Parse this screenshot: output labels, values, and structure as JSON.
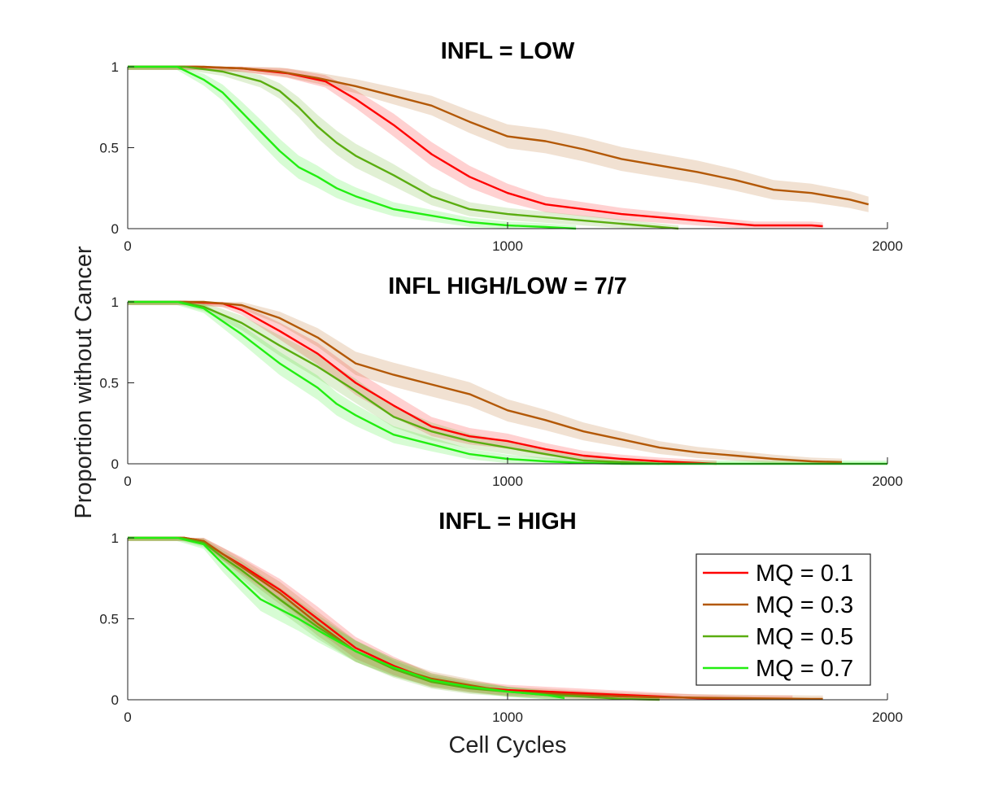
{
  "chart_data": {
    "type": "line",
    "xlabel": "Cell Cycles",
    "ylabel": "Proportion without Cancer",
    "xlim": [
      0,
      2000
    ],
    "ylim": [
      0,
      1
    ],
    "x_ticks": [
      "0",
      "1000",
      "2000"
    ],
    "y_ticks": [
      "0",
      "0.5",
      "1"
    ],
    "grid": false,
    "legend": {
      "placement": "bottom-right of third panel",
      "entries": [
        "MQ = 0.1",
        "MQ = 0.3",
        "MQ = 0.5",
        "MQ = 0.7"
      ]
    },
    "colors": {
      "MQ = 0.1": "#ff0000",
      "MQ = 0.3": "#b35806",
      "MQ = 0.5": "#5aad10",
      "MQ = 0.7": "#22ee11"
    },
    "panels": [
      {
        "title": "INFL = LOW",
        "series": [
          {
            "name": "MQ = 0.1",
            "points": [
              [
                0,
                1
              ],
              [
                180,
                1
              ],
              [
                300,
                0.99
              ],
              [
                420,
                0.96
              ],
              [
                520,
                0.91
              ],
              [
                600,
                0.8
              ],
              [
                700,
                0.64
              ],
              [
                800,
                0.46
              ],
              [
                900,
                0.32
              ],
              [
                1000,
                0.22
              ],
              [
                1100,
                0.15
              ],
              [
                1200,
                0.12
              ],
              [
                1300,
                0.09
              ],
              [
                1400,
                0.07
              ],
              [
                1500,
                0.05
              ],
              [
                1600,
                0.03
              ],
              [
                1650,
                0.02
              ],
              [
                1800,
                0.02
              ],
              [
                1830,
                0.015
              ]
            ]
          },
          {
            "name": "MQ = 0.3",
            "points": [
              [
                0,
                1
              ],
              [
                200,
                1
              ],
              [
                300,
                0.99
              ],
              [
                400,
                0.97
              ],
              [
                500,
                0.93
              ],
              [
                600,
                0.88
              ],
              [
                700,
                0.82
              ],
              [
                800,
                0.76
              ],
              [
                900,
                0.66
              ],
              [
                1000,
                0.57
              ],
              [
                1100,
                0.54
              ],
              [
                1200,
                0.49
              ],
              [
                1300,
                0.43
              ],
              [
                1400,
                0.39
              ],
              [
                1500,
                0.35
              ],
              [
                1600,
                0.3
              ],
              [
                1700,
                0.24
              ],
              [
                1800,
                0.22
              ],
              [
                1900,
                0.18
              ],
              [
                1950,
                0.15
              ]
            ]
          },
          {
            "name": "MQ = 0.5",
            "points": [
              [
                0,
                1
              ],
              [
                150,
                1
              ],
              [
                250,
                0.97
              ],
              [
                350,
                0.91
              ],
              [
                400,
                0.85
              ],
              [
                450,
                0.75
              ],
              [
                500,
                0.63
              ],
              [
                550,
                0.53
              ],
              [
                600,
                0.45
              ],
              [
                700,
                0.33
              ],
              [
                800,
                0.2
              ],
              [
                900,
                0.12
              ],
              [
                1000,
                0.09
              ],
              [
                1100,
                0.07
              ],
              [
                1200,
                0.05
              ],
              [
                1300,
                0.03
              ],
              [
                1400,
                0.01
              ],
              [
                1450,
                0
              ]
            ]
          },
          {
            "name": "MQ = 0.7",
            "points": [
              [
                0,
                1
              ],
              [
                130,
                1
              ],
              [
                200,
                0.92
              ],
              [
                250,
                0.84
              ],
              [
                300,
                0.72
              ],
              [
                350,
                0.6
              ],
              [
                400,
                0.48
              ],
              [
                450,
                0.38
              ],
              [
                500,
                0.32
              ],
              [
                550,
                0.25
              ],
              [
                600,
                0.2
              ],
              [
                700,
                0.12
              ],
              [
                800,
                0.08
              ],
              [
                900,
                0.04
              ],
              [
                1000,
                0.02
              ],
              [
                1100,
                0.01
              ],
              [
                1180,
                0
              ]
            ]
          }
        ]
      },
      {
        "title": "INFL HIGH/LOW = 7/7",
        "series": [
          {
            "name": "MQ = 0.1",
            "points": [
              [
                0,
                1
              ],
              [
                150,
                1
              ],
              [
                250,
                0.99
              ],
              [
                300,
                0.95
              ],
              [
                400,
                0.82
              ],
              [
                500,
                0.68
              ],
              [
                600,
                0.5
              ],
              [
                700,
                0.36
              ],
              [
                800,
                0.23
              ],
              [
                900,
                0.17
              ],
              [
                1000,
                0.14
              ],
              [
                1100,
                0.09
              ],
              [
                1200,
                0.05
              ],
              [
                1300,
                0.03
              ],
              [
                1400,
                0.015
              ],
              [
                1500,
                0.005
              ],
              [
                1550,
                0
              ]
            ]
          },
          {
            "name": "MQ = 0.3",
            "points": [
              [
                0,
                1
              ],
              [
                200,
                1
              ],
              [
                300,
                0.98
              ],
              [
                400,
                0.9
              ],
              [
                500,
                0.78
              ],
              [
                600,
                0.62
              ],
              [
                700,
                0.55
              ],
              [
                800,
                0.49
              ],
              [
                900,
                0.43
              ],
              [
                1000,
                0.33
              ],
              [
                1100,
                0.27
              ],
              [
                1200,
                0.2
              ],
              [
                1300,
                0.15
              ],
              [
                1400,
                0.1
              ],
              [
                1500,
                0.07
              ],
              [
                1600,
                0.05
              ],
              [
                1700,
                0.03
              ],
              [
                1800,
                0.015
              ],
              [
                1880,
                0.01
              ]
            ]
          },
          {
            "name": "MQ = 0.5",
            "points": [
              [
                0,
                1
              ],
              [
                140,
                1
              ],
              [
                200,
                0.97
              ],
              [
                300,
                0.87
              ],
              [
                400,
                0.73
              ],
              [
                500,
                0.6
              ],
              [
                600,
                0.45
              ],
              [
                700,
                0.29
              ],
              [
                800,
                0.2
              ],
              [
                900,
                0.14
              ],
              [
                1000,
                0.1
              ],
              [
                1100,
                0.06
              ],
              [
                1200,
                0.02
              ],
              [
                1300,
                0.01
              ],
              [
                1400,
                0
              ]
            ]
          },
          {
            "name": "MQ = 0.7",
            "points": [
              [
                0,
                1
              ],
              [
                130,
                1
              ],
              [
                200,
                0.96
              ],
              [
                300,
                0.8
              ],
              [
                400,
                0.62
              ],
              [
                500,
                0.47
              ],
              [
                550,
                0.37
              ],
              [
                600,
                0.3
              ],
              [
                700,
                0.18
              ],
              [
                800,
                0.12
              ],
              [
                900,
                0.06
              ],
              [
                1000,
                0.03
              ],
              [
                1100,
                0.015
              ],
              [
                1200,
                0.005
              ],
              [
                1300,
                0
              ],
              [
                2000,
                0
              ]
            ]
          }
        ]
      },
      {
        "title": "INFL = HIGH",
        "series": [
          {
            "name": "MQ = 0.1",
            "points": [
              [
                0,
                1
              ],
              [
                150,
                1
              ],
              [
                200,
                0.98
              ],
              [
                250,
                0.9
              ],
              [
                300,
                0.83
              ],
              [
                400,
                0.68
              ],
              [
                500,
                0.5
              ],
              [
                600,
                0.32
              ],
              [
                700,
                0.21
              ],
              [
                800,
                0.12
              ],
              [
                900,
                0.08
              ],
              [
                1000,
                0.06
              ],
              [
                1100,
                0.05
              ],
              [
                1200,
                0.04
              ],
              [
                1300,
                0.03
              ],
              [
                1400,
                0.02
              ],
              [
                1500,
                0.01
              ],
              [
                1600,
                0.005
              ],
              [
                1750,
                0.005
              ]
            ]
          },
          {
            "name": "MQ = 0.3",
            "points": [
              [
                0,
                1
              ],
              [
                150,
                1
              ],
              [
                200,
                0.98
              ],
              [
                250,
                0.9
              ],
              [
                300,
                0.82
              ],
              [
                400,
                0.66
              ],
              [
                500,
                0.47
              ],
              [
                600,
                0.3
              ],
              [
                700,
                0.2
              ],
              [
                800,
                0.13
              ],
              [
                900,
                0.09
              ],
              [
                1000,
                0.05
              ],
              [
                1100,
                0.04
              ],
              [
                1200,
                0.03
              ],
              [
                1300,
                0.02
              ],
              [
                1400,
                0.015
              ],
              [
                1600,
                0.01
              ],
              [
                1800,
                0.005
              ],
              [
                1830,
                0.005
              ]
            ]
          },
          {
            "name": "MQ = 0.5",
            "points": [
              [
                0,
                1
              ],
              [
                140,
                1
              ],
              [
                200,
                0.97
              ],
              [
                250,
                0.88
              ],
              [
                300,
                0.8
              ],
              [
                400,
                0.62
              ],
              [
                500,
                0.45
              ],
              [
                600,
                0.3
              ],
              [
                700,
                0.19
              ],
              [
                800,
                0.11
              ],
              [
                900,
                0.07
              ],
              [
                1000,
                0.05
              ],
              [
                1100,
                0.03
              ],
              [
                1200,
                0.02
              ],
              [
                1300,
                0.005
              ],
              [
                1400,
                0
              ]
            ]
          },
          {
            "name": "MQ = 0.7",
            "points": [
              [
                0,
                1
              ],
              [
                130,
                1
              ],
              [
                200,
                0.96
              ],
              [
                250,
                0.84
              ],
              [
                300,
                0.73
              ],
              [
                350,
                0.62
              ],
              [
                400,
                0.56
              ],
              [
                450,
                0.5
              ],
              [
                500,
                0.43
              ],
              [
                600,
                0.3
              ],
              [
                700,
                0.2
              ],
              [
                800,
                0.12
              ],
              [
                900,
                0.08
              ],
              [
                1000,
                0.05
              ],
              [
                1100,
                0.03
              ],
              [
                1150,
                0.01
              ]
            ]
          }
        ]
      }
    ]
  }
}
